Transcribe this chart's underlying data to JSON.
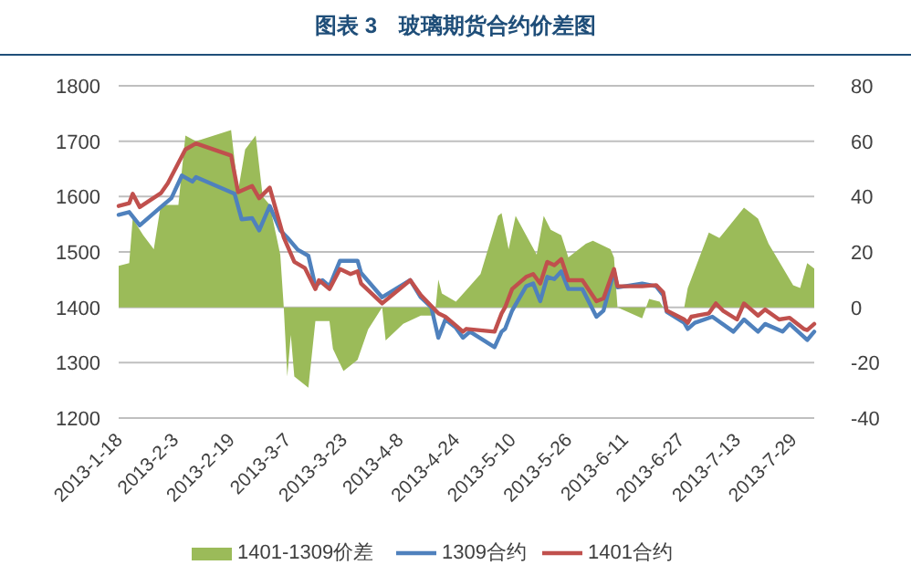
{
  "chart_data": {
    "type": "line",
    "title": "图表 3　玻璃期货合约价差图",
    "xlim": [
      "2013-01-18",
      "2013-08-04"
    ],
    "xticks": [
      {
        "value": "2013-01-18",
        "label": "2013-1-18"
      },
      {
        "value": "2013-02-03",
        "label": "2013-2-3"
      },
      {
        "value": "2013-02-19",
        "label": "2013-2-19"
      },
      {
        "value": "2013-03-07",
        "label": "2013-3-7"
      },
      {
        "value": "2013-03-23",
        "label": "2013-3-23"
      },
      {
        "value": "2013-04-08",
        "label": "2013-4-8"
      },
      {
        "value": "2013-04-24",
        "label": "2013-4-24"
      },
      {
        "value": "2013-05-10",
        "label": "2013-5-10"
      },
      {
        "value": "2013-05-26",
        "label": "2013-5-26"
      },
      {
        "value": "2013-06-11",
        "label": "2013-6-11"
      },
      {
        "value": "2013-06-27",
        "label": "2013-6-27"
      },
      {
        "value": "2013-07-13",
        "label": "2013-7-13"
      },
      {
        "value": "2013-07-29",
        "label": "2013-7-29"
      }
    ],
    "ylim": [
      1200,
      1800
    ],
    "yticks": [
      1200,
      1300,
      1400,
      1500,
      1600,
      1700,
      1800
    ],
    "y2lim": [
      -40,
      80
    ],
    "y2ticks": [
      -40,
      -20,
      0,
      20,
      40,
      60,
      80
    ],
    "grid": "y",
    "legend": "bottom",
    "series": [
      {
        "name": "1401-1309价差",
        "type": "area",
        "axis": "y2",
        "color": "#9bbb59",
        "x": [
          "2013-01-18",
          "2013-01-21",
          "2013-01-22",
          "2013-01-25",
          "2013-01-28",
          "2013-01-30",
          "2013-02-04",
          "2013-02-06",
          "2013-02-09",
          "2013-02-19",
          "2013-02-21",
          "2013-02-23",
          "2013-02-26",
          "2013-02-28",
          "2013-03-02",
          "2013-03-05",
          "2013-03-06",
          "2013-03-07",
          "2013-03-08",
          "2013-03-09",
          "2013-03-13",
          "2013-03-15",
          "2013-03-19",
          "2013-03-20",
          "2013-03-23",
          "2013-03-27",
          "2013-03-30",
          "2013-04-03",
          "2013-04-04",
          "2013-04-09",
          "2013-04-14",
          "2013-04-18",
          "2013-04-19",
          "2013-04-20",
          "2013-04-24",
          "2013-05-01",
          "2013-05-06",
          "2013-05-07",
          "2013-05-09",
          "2013-05-11",
          "2013-05-17",
          "2013-05-19",
          "2013-05-21",
          "2013-05-24",
          "2013-05-26",
          "2013-05-27",
          "2013-05-31",
          "2013-06-02",
          "2013-06-07",
          "2013-06-08",
          "2013-06-09",
          "2013-06-16",
          "2013-06-18",
          "2013-06-21",
          "2013-06-22",
          "2013-06-28",
          "2013-06-29",
          "2013-07-05",
          "2013-07-08",
          "2013-07-15",
          "2013-07-19",
          "2013-07-22",
          "2013-07-29",
          "2013-07-31",
          "2013-08-02",
          "2013-08-04"
        ],
        "values": [
          15,
          16,
          32,
          26,
          21,
          37,
          37,
          62,
          60,
          64,
          42,
          57,
          62,
          40,
          37,
          19,
          0,
          -25,
          -10,
          -25,
          -29,
          -5,
          -5,
          -15,
          -23,
          -19,
          -8,
          0,
          -12,
          -6,
          -3,
          -3,
          10,
          5,
          2,
          12,
          33,
          34,
          21,
          33,
          19,
          33,
          28,
          26,
          18,
          19,
          23,
          24,
          21,
          18,
          0,
          -4,
          3,
          2,
          0,
          0,
          7,
          27,
          25,
          36,
          32,
          23,
          8,
          7,
          16,
          14
        ]
      },
      {
        "name": "1309合约",
        "color": "#4f81bd",
        "x": [
          "2013-01-18",
          "2013-01-21",
          "2013-01-24",
          "2013-01-30",
          "2013-02-02",
          "2013-02-05",
          "2013-02-08",
          "2013-02-09",
          "2013-02-20",
          "2013-02-22",
          "2013-02-25",
          "2013-02-27",
          "2013-03-02",
          "2013-03-05",
          "2013-03-07",
          "2013-03-10",
          "2013-03-13",
          "2013-03-15",
          "2013-03-17",
          "2013-03-19",
          "2013-03-22",
          "2013-03-27",
          "2013-03-28",
          "2013-04-03",
          "2013-04-11",
          "2013-04-14",
          "2013-04-17",
          "2013-04-19",
          "2013-04-21",
          "2013-04-24",
          "2013-04-26",
          "2013-04-28",
          "2013-05-05",
          "2013-05-07",
          "2013-05-08",
          "2013-05-10",
          "2013-05-11",
          "2013-05-14",
          "2013-05-16",
          "2013-05-18",
          "2013-05-20",
          "2013-05-22",
          "2013-05-24",
          "2013-05-26",
          "2013-05-30",
          "2013-06-03",
          "2013-06-05",
          "2013-06-08",
          "2013-06-09",
          "2013-06-16",
          "2013-06-20",
          "2013-06-22",
          "2013-06-23",
          "2013-06-28",
          "2013-06-29",
          "2013-07-01",
          "2013-07-06",
          "2013-07-12",
          "2013-07-15",
          "2013-07-19",
          "2013-07-21",
          "2013-07-26",
          "2013-07-28",
          "2013-08-02",
          "2013-08-04"
        ],
        "values": [
          1567,
          1572,
          1548,
          1581,
          1597,
          1638,
          1627,
          1635,
          1605,
          1559,
          1561,
          1539,
          1583,
          1539,
          1526,
          1504,
          1493,
          1438,
          1449,
          1438,
          1484,
          1484,
          1462,
          1418,
          1449,
          1418,
          1400,
          1345,
          1378,
          1363,
          1345,
          1356,
          1328,
          1356,
          1361,
          1394,
          1405,
          1438,
          1443,
          1411,
          1455,
          1451,
          1465,
          1433,
          1433,
          1383,
          1394,
          1465,
          1436,
          1443,
          1438,
          1422,
          1392,
          1372,
          1361,
          1372,
          1383,
          1356,
          1378,
          1356,
          1370,
          1356,
          1370,
          1341,
          1356
        ]
      },
      {
        "name": "1401合约",
        "color": "#c0504d",
        "x": [
          "2013-01-18",
          "2013-01-21",
          "2013-01-22",
          "2013-01-24",
          "2013-01-30",
          "2013-02-01",
          "2013-02-06",
          "2013-02-09",
          "2013-02-19",
          "2013-02-21",
          "2013-02-25",
          "2013-02-27",
          "2013-03-02",
          "2013-03-06",
          "2013-03-09",
          "2013-03-12",
          "2013-03-15",
          "2013-03-16",
          "2013-03-19",
          "2013-03-22",
          "2013-03-25",
          "2013-03-27",
          "2013-03-28",
          "2013-04-03",
          "2013-04-11",
          "2013-04-14",
          "2013-04-19",
          "2013-04-21",
          "2013-04-24",
          "2013-04-26",
          "2013-04-27",
          "2013-05-05",
          "2013-05-07",
          "2013-05-08",
          "2013-05-10",
          "2013-05-14",
          "2013-05-16",
          "2013-05-18",
          "2013-05-20",
          "2013-05-22",
          "2013-05-24",
          "2013-05-26",
          "2013-05-30",
          "2013-06-03",
          "2013-06-05",
          "2013-06-08",
          "2013-06-09",
          "2013-06-16",
          "2013-06-20",
          "2013-06-22",
          "2013-06-23",
          "2013-06-28",
          "2013-06-29",
          "2013-06-30",
          "2013-07-05",
          "2013-07-07",
          "2013-07-09",
          "2013-07-13",
          "2013-07-15",
          "2013-07-19",
          "2013-07-21",
          "2013-07-25",
          "2013-07-28",
          "2013-08-01",
          "2013-08-02",
          "2013-08-04"
        ],
        "values": [
          1583,
          1588,
          1605,
          1581,
          1606,
          1624,
          1685,
          1696,
          1674,
          1608,
          1619,
          1597,
          1616,
          1526,
          1482,
          1471,
          1433,
          1449,
          1433,
          1469,
          1460,
          1465,
          1443,
          1407,
          1449,
          1422,
          1389,
          1383,
          1367,
          1356,
          1361,
          1356,
          1389,
          1400,
          1433,
          1455,
          1460,
          1443,
          1482,
          1476,
          1487,
          1449,
          1449,
          1411,
          1416,
          1469,
          1438,
          1438,
          1440,
          1427,
          1394,
          1378,
          1372,
          1383,
          1389,
          1407,
          1394,
          1378,
          1407,
          1385,
          1396,
          1378,
          1381,
          1361,
          1359,
          1370
        ]
      }
    ]
  }
}
